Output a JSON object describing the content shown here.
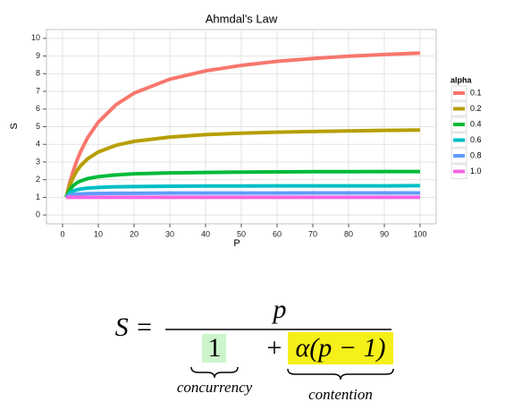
{
  "chart_data": {
    "type": "line",
    "title": "Ahmdal's Law",
    "x_label": "P",
    "y_label": "S",
    "x": [
      1,
      2,
      3,
      4,
      5,
      7,
      10,
      15,
      20,
      30,
      40,
      50,
      60,
      70,
      80,
      90,
      100
    ],
    "series": [
      {
        "name": "0.1",
        "color": "#F8766D",
        "values": [
          1,
          1.82,
          2.5,
          3.08,
          3.57,
          4.38,
          5.26,
          6.25,
          6.9,
          7.69,
          8.16,
          8.47,
          8.7,
          8.86,
          8.99,
          9.09,
          9.17
        ]
      },
      {
        "name": "0.2",
        "color": "#B79F00",
        "values": [
          1,
          1.67,
          2.14,
          2.5,
          2.78,
          3.18,
          3.57,
          3.95,
          4.17,
          4.41,
          4.55,
          4.63,
          4.69,
          4.73,
          4.76,
          4.79,
          4.81
        ]
      },
      {
        "name": "0.4",
        "color": "#00BA38",
        "values": [
          1,
          1.43,
          1.67,
          1.82,
          1.92,
          2.06,
          2.17,
          2.27,
          2.33,
          2.38,
          2.41,
          2.43,
          2.44,
          2.45,
          2.45,
          2.46,
          2.46
        ]
      },
      {
        "name": "0.6",
        "color": "#00BFC4",
        "values": [
          1,
          1.25,
          1.36,
          1.43,
          1.47,
          1.52,
          1.56,
          1.6,
          1.61,
          1.63,
          1.64,
          1.64,
          1.65,
          1.65,
          1.65,
          1.65,
          1.66
        ]
      },
      {
        "name": "0.8",
        "color": "#619CFF",
        "values": [
          1,
          1.11,
          1.15,
          1.18,
          1.19,
          1.21,
          1.22,
          1.23,
          1.23,
          1.24,
          1.24,
          1.24,
          1.24,
          1.25,
          1.25,
          1.25,
          1.25
        ]
      },
      {
        "name": "1.0",
        "color": "#F564E3",
        "values": [
          1,
          1,
          1,
          1,
          1,
          1,
          1,
          1,
          1,
          1,
          1,
          1,
          1,
          1,
          1,
          1,
          1
        ]
      }
    ],
    "legend_title": "alpha",
    "legend_position": "right",
    "xlim": [
      -4.5,
      104.5
    ],
    "ylim": [
      -0.5,
      10.5
    ],
    "xticks": [
      0,
      10,
      20,
      30,
      40,
      50,
      60,
      70,
      80,
      90,
      100
    ],
    "yticks": [
      0,
      1,
      2,
      3,
      4,
      5,
      6,
      7,
      8,
      9,
      10
    ],
    "grid": true
  },
  "equation": {
    "lhs": "S =",
    "numerator": "p",
    "term1": "1",
    "plus": "+",
    "term2": "α(p − 1)",
    "term1_label": "concurrency",
    "term2_label": "contention"
  }
}
